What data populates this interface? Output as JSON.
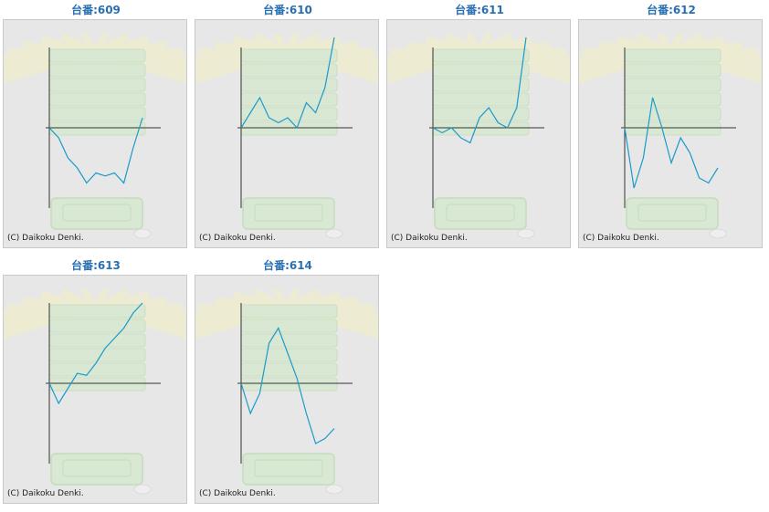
{
  "copyright": "(C) Daikoku Denki.",
  "colors": {
    "line": "#1a9acb",
    "title": "#2a6fb0",
    "axis": "#333333",
    "background": "#e7e7e7"
  },
  "background_art": "pachislot-machine-illustration",
  "machines": [
    {
      "title": "台番:609",
      "chart_data": {
        "type": "line",
        "title": "台番:609",
        "x": [
          0,
          10,
          20,
          30,
          40,
          50,
          60,
          70,
          80,
          90,
          100
        ],
        "y": [
          0,
          -10,
          -30,
          -40,
          -55,
          -45,
          -48,
          -45,
          -55,
          -20,
          10
        ],
        "ylim": [
          -80,
          80
        ]
      }
    },
    {
      "title": "台番:610",
      "chart_data": {
        "type": "line",
        "title": "台番:610",
        "x": [
          0,
          10,
          20,
          30,
          40,
          50,
          60,
          70,
          80,
          90,
          100
        ],
        "y": [
          0,
          15,
          30,
          10,
          5,
          10,
          0,
          25,
          15,
          40,
          90
        ],
        "ylim": [
          -80,
          80
        ]
      }
    },
    {
      "title": "台番:611",
      "chart_data": {
        "type": "line",
        "title": "台番:611",
        "x": [
          0,
          10,
          20,
          30,
          40,
          50,
          60,
          70,
          80,
          90,
          100
        ],
        "y": [
          0,
          -5,
          0,
          -10,
          -15,
          10,
          20,
          5,
          0,
          20,
          90
        ],
        "ylim": [
          -80,
          80
        ]
      }
    },
    {
      "title": "台番:612",
      "chart_data": {
        "type": "line",
        "title": "台番:612",
        "x": [
          0,
          10,
          20,
          30,
          40,
          50,
          60,
          70,
          80,
          90,
          100
        ],
        "y": [
          0,
          -60,
          -30,
          30,
          0,
          -35,
          -10,
          -25,
          -50,
          -55,
          -40
        ],
        "ylim": [
          -80,
          80
        ]
      }
    },
    {
      "title": "台番:613",
      "chart_data": {
        "type": "line",
        "title": "台番:613",
        "x": [
          0,
          10,
          20,
          30,
          40,
          50,
          60,
          70,
          80,
          90,
          100
        ],
        "y": [
          0,
          -20,
          -5,
          10,
          8,
          20,
          35,
          45,
          55,
          70,
          80
        ],
        "ylim": [
          -80,
          80
        ]
      }
    },
    {
      "title": "台番:614",
      "chart_data": {
        "type": "line",
        "title": "台番:614",
        "x": [
          0,
          10,
          20,
          30,
          40,
          50,
          60,
          70,
          80,
          90,
          100
        ],
        "y": [
          0,
          -30,
          -10,
          40,
          55,
          30,
          5,
          -30,
          -60,
          -55,
          -45
        ],
        "ylim": [
          -80,
          80
        ]
      }
    }
  ]
}
